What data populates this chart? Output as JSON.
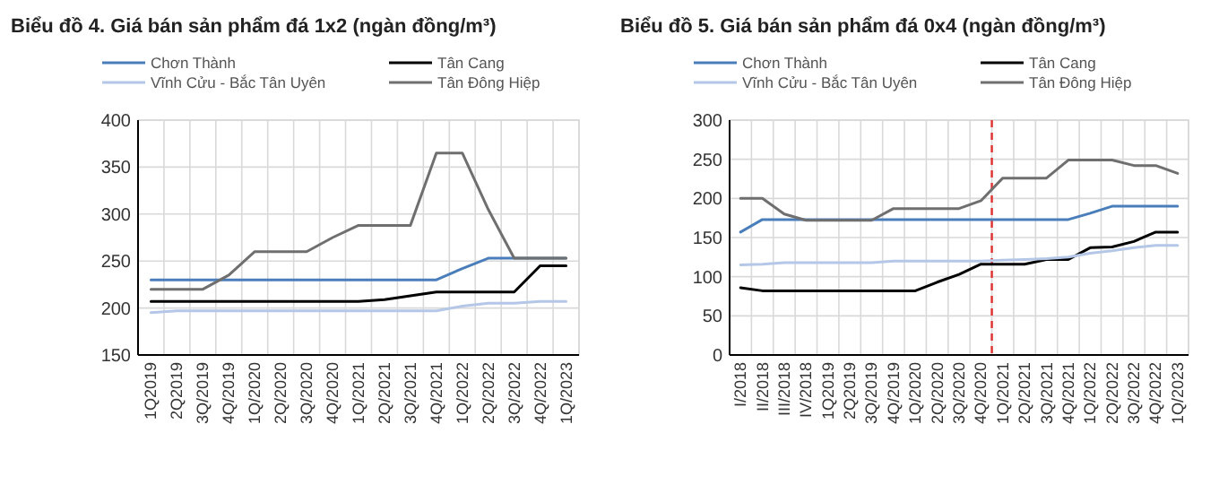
{
  "chart_data": [
    {
      "type": "line",
      "title": "Biểu đồ 4. Giá bán sản phẩm đá 1x2 (ngàn đồng/m³)",
      "categories": [
        "1Q2019",
        "2Q2019",
        "3Q/2019",
        "4Q/2019",
        "1Q/2020",
        "2Q/2020",
        "3Q/2020",
        "4Q/2020",
        "1Q/2021",
        "2Q/2021",
        "3Q/2021",
        "4Q/2021",
        "1Q/2022",
        "2Q/2022",
        "3Q/2022",
        "4Q/2022",
        "1Q/2023"
      ],
      "series": [
        {
          "name": "Chơn Thành",
          "color": "#4a7ebb",
          "values": [
            230,
            230,
            230,
            230,
            230,
            230,
            230,
            230,
            230,
            230,
            230,
            230,
            242,
            253,
            253,
            253,
            253
          ]
        },
        {
          "name": "Tân Cang",
          "color": "#000000",
          "values": [
            207,
            207,
            207,
            207,
            207,
            207,
            207,
            207,
            207,
            209,
            213,
            217,
            217,
            217,
            217,
            245,
            245
          ]
        },
        {
          "name": "Vĩnh Cửu - Bắc Tân Uyên",
          "color": "#b4c7e7",
          "values": [
            195,
            197,
            197,
            197,
            197,
            197,
            197,
            197,
            197,
            197,
            197,
            197,
            202,
            205,
            205,
            207,
            207
          ]
        },
        {
          "name": "Tân Đông Hiệp",
          "color": "#6f6f6f",
          "values": [
            220,
            220,
            220,
            235,
            260,
            260,
            260,
            275,
            288,
            288,
            288,
            365,
            365,
            305,
            253,
            253,
            253
          ]
        }
      ],
      "ylim": [
        150,
        400
      ],
      "yticks": [
        150,
        200,
        250,
        300,
        350,
        400
      ],
      "grid": true,
      "legend": "top",
      "marker": "none"
    },
    {
      "type": "line",
      "title": "Biểu đồ 5. Giá bán sản phẩm đá 0x4 (ngàn đồng/m³)",
      "categories": [
        "I/2018",
        "II/2018",
        "III/2018",
        "IV/2018",
        "1Q2019",
        "2Q2019",
        "3Q/2019",
        "4Q/2019",
        "1Q/2020",
        "2Q/2020",
        "3Q/2020",
        "4Q/2020",
        "1Q/2021",
        "2Q/2021",
        "3Q/2021",
        "4Q/2021",
        "1Q/2022",
        "2Q/2022",
        "3Q/2022",
        "4Q/2022",
        "1Q/2023"
      ],
      "series": [
        {
          "name": "Chơn Thành",
          "color": "#4a7ebb",
          "values": [
            157,
            173,
            173,
            173,
            173,
            173,
            173,
            173,
            173,
            173,
            173,
            173,
            173,
            173,
            173,
            173,
            181,
            190,
            190,
            190,
            190
          ]
        },
        {
          "name": "Tân Cang",
          "color": "#000000",
          "values": [
            86,
            82,
            82,
            82,
            82,
            82,
            82,
            82,
            82,
            93,
            103,
            116,
            116,
            116,
            122,
            122,
            137,
            138,
            145,
            157,
            157
          ]
        },
        {
          "name": "Vĩnh Cửu - Bắc Tân Uyên",
          "color": "#b4c7e7",
          "values": [
            115,
            116,
            118,
            118,
            118,
            118,
            118,
            120,
            120,
            120,
            120,
            120,
            121,
            122,
            123,
            125,
            130,
            133,
            137,
            140,
            140
          ]
        },
        {
          "name": "Tân Đông Hiệp",
          "color": "#6f6f6f",
          "values": [
            200,
            200,
            180,
            172,
            172,
            172,
            172,
            187,
            187,
            187,
            187,
            197,
            226,
            226,
            226,
            249,
            249,
            249,
            242,
            242,
            232
          ]
        }
      ],
      "ylim": [
        0,
        300
      ],
      "yticks": [
        0,
        50,
        100,
        150,
        200,
        250,
        300
      ],
      "grid": true,
      "legend": "top",
      "marker": "none",
      "ref_lines": [
        {
          "axis": "x",
          "value": "1Q/2021",
          "color": "#e03030",
          "line_style": "dashed"
        }
      ]
    }
  ]
}
